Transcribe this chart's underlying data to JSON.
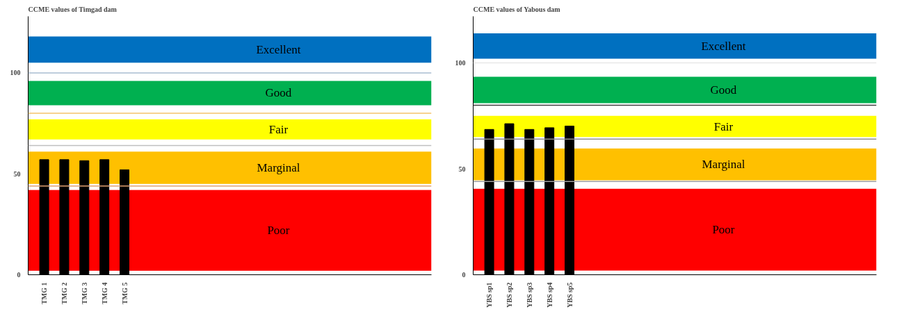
{
  "chart_data": [
    {
      "type": "bar",
      "title": "CCME values of Timgad dam",
      "categories": [
        "TMG 1",
        "TMG 2",
        "TMG 3",
        "TMG 4",
        "TMG 5"
      ],
      "values": [
        57,
        57,
        56.5,
        57,
        52
      ],
      "color": "#000000",
      "ylim": [
        0,
        128
      ],
      "yticks": [
        0,
        50,
        100
      ],
      "grid": false,
      "ref_lines": [
        {
          "axis": "y",
          "value": 100,
          "color": "#a9bcd0"
        },
        {
          "axis": "y",
          "value": 80,
          "color": "#f4c36b"
        },
        {
          "axis": "y",
          "value": 64,
          "color": "#bfbfbf"
        },
        {
          "axis": "y",
          "value": 44,
          "color": "#e0a070"
        }
      ],
      "bands": [
        {
          "axis": "y",
          "from": 105,
          "to": 118,
          "label": "Excellent",
          "color": "#0070c0"
        },
        {
          "axis": "y",
          "from": 84,
          "to": 96,
          "label": "Good",
          "color": "#00b050"
        },
        {
          "axis": "y",
          "from": 67,
          "to": 77,
          "label": "Fair",
          "color": "#ffff00"
        },
        {
          "axis": "y",
          "from": 45,
          "to": 61,
          "label": "Marginal",
          "color": "#ffc000"
        },
        {
          "axis": "y",
          "from": 2,
          "to": 42,
          "label": "Poor",
          "color": "#ff0000"
        }
      ]
    },
    {
      "type": "bar",
      "title": "CCME values of Yabous dam",
      "categories": [
        "YBS sp1",
        "YBS sp2",
        "YBS sp3",
        "YBS sp4",
        "YBS sp5"
      ],
      "values": [
        68.6,
        71.3,
        68.6,
        69.4,
        70.2
      ],
      "color": "#000000",
      "ylim": [
        0,
        122
      ],
      "yticks": [
        0,
        50,
        100
      ],
      "grid": false,
      "ref_lines": [
        {
          "axis": "y",
          "value": 100,
          "color": "#e8e8e8"
        },
        {
          "axis": "y",
          "value": 80,
          "color": "#404040"
        },
        {
          "axis": "y",
          "value": 64,
          "color": "#909090"
        },
        {
          "axis": "y",
          "value": 44,
          "color": "#a0a0a0"
        }
      ],
      "bands": [
        {
          "axis": "y",
          "from": 102,
          "to": 114,
          "label": "Excellent",
          "color": "#0070c0"
        },
        {
          "axis": "y",
          "from": 81,
          "to": 93.5,
          "label": "Good",
          "color": "#00b050"
        },
        {
          "axis": "y",
          "from": 65,
          "to": 75,
          "label": "Fair",
          "color": "#ffff00"
        },
        {
          "axis": "y",
          "from": 44.6,
          "to": 59.6,
          "label": "Marginal",
          "color": "#ffc000"
        },
        {
          "axis": "y",
          "from": 2,
          "to": 40.6,
          "label": "Poor",
          "color": "#ff0000"
        }
      ]
    }
  ]
}
